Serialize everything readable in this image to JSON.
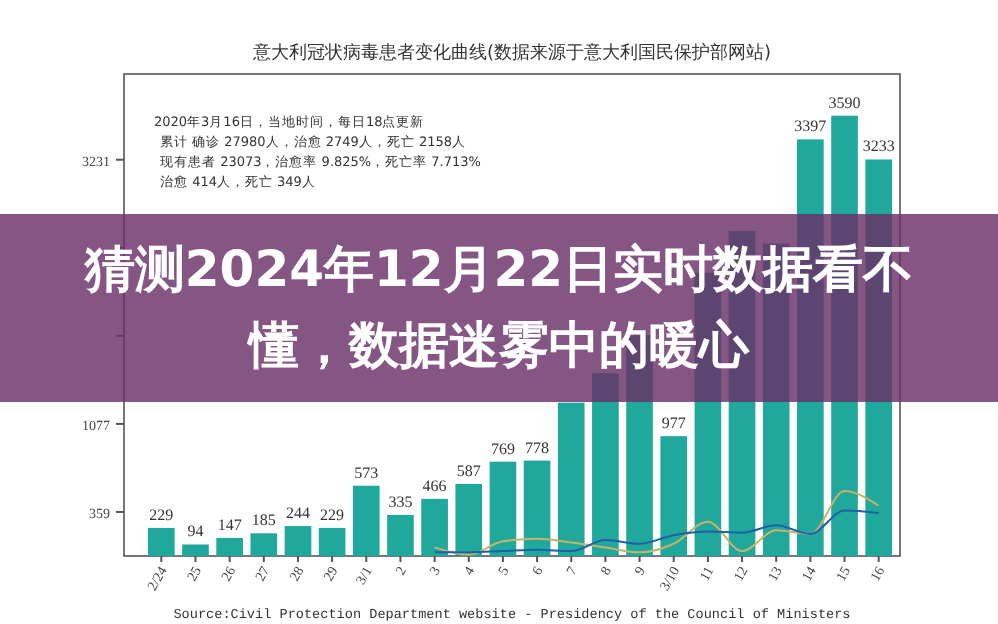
{
  "chart_data": {
    "type": "bar",
    "title": "意大利冠状病毒患者变化曲线(数据来源于意大利国民保护部网站)",
    "categories": [
      "2/24",
      "25",
      "26",
      "27",
      "28",
      "29",
      "3/1",
      "2",
      "3",
      "4",
      "5",
      "6",
      "7",
      "8",
      "9",
      "3/10",
      "11",
      "12",
      "13",
      "14",
      "15",
      "16"
    ],
    "series": [
      {
        "color": "#1fa89b",
        "values": [
          229,
          94,
          147,
          185,
          244,
          229,
          573,
          335,
          466,
          587,
          769,
          778,
          1250,
          1490,
          1800,
          977,
          2310,
          2651,
          2547,
          3397,
          3590,
          3233
        ],
        "value_labels": [
          "229",
          "94",
          "147",
          "185",
          "244",
          "229",
          "573",
          "335",
          "466",
          "587",
          "769",
          "778",
          null,
          null,
          null,
          "977",
          null,
          null,
          null,
          "3397",
          "3590",
          "3233"
        ]
      },
      {
        "type": "line",
        "color": "#c9b26a",
        "values": [
          null,
          null,
          null,
          null,
          null,
          null,
          null,
          null,
          70,
          10,
          120,
          140,
          110,
          70,
          30,
          100,
          280,
          40,
          210,
          180,
          530,
          410
        ]
      },
      {
        "type": "line",
        "color": "#1f5fa8",
        "values": [
          null,
          null,
          null,
          null,
          null,
          null,
          null,
          null,
          30,
          30,
          40,
          50,
          40,
          130,
          100,
          170,
          200,
          190,
          250,
          180,
          370,
          350
        ]
      }
    ],
    "ylim": [
      0,
      3930
    ],
    "yticks": [
      359,
      1077,
      {
        "value": 1795,
        "label": null
      },
      {
        "value": 2513,
        "label": null
      },
      3231
    ],
    "annotations": [
      "2020年3月16日，当地时间，每日18点更新",
      "累计 确诊 27980人，治愈 2749人，死亡 2158人",
      "现有患者 23073，治愈率 9.825%，死亡率 7.713%",
      "治愈 414人，死亡 349人",
      "Source:Civil Protection Department website - Presidency of the Council of Ministers",
      "猜测2024年12月22日实时数据看不懂，数据迷雾中的暖心"
    ]
  }
}
